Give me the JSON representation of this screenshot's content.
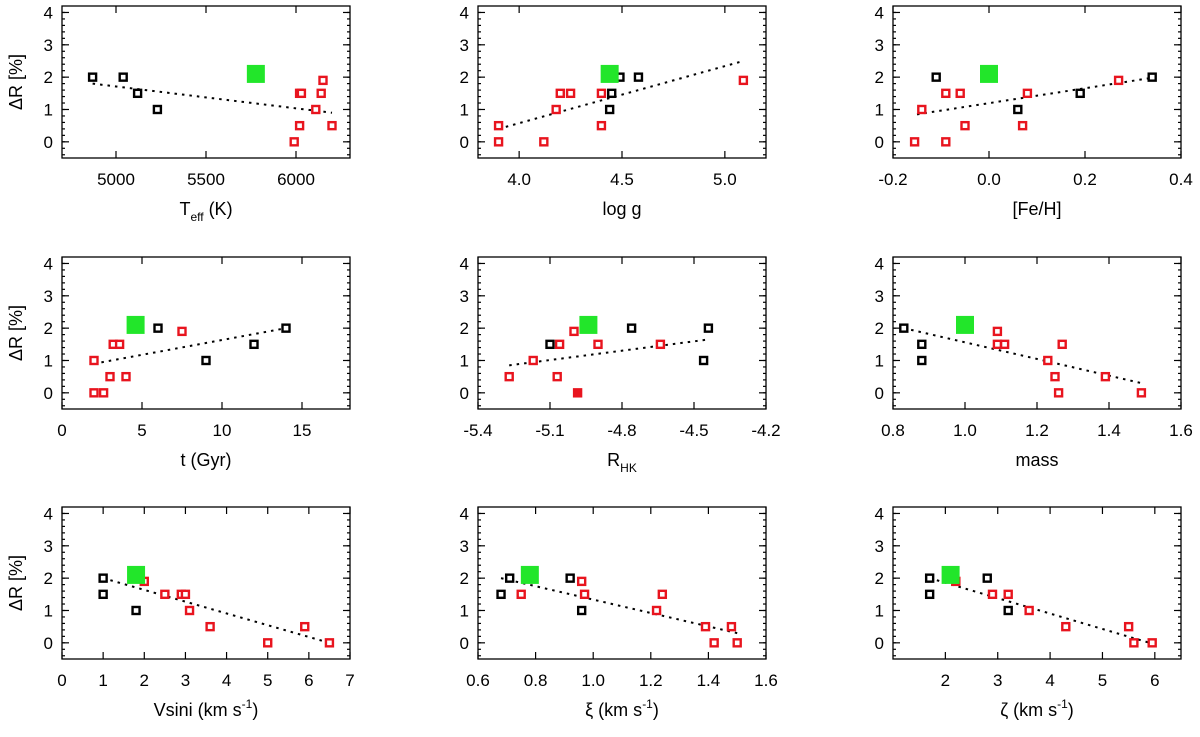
{
  "colors": {
    "black": "#000000",
    "red": "#e8141e",
    "green": "#22e62a"
  },
  "chart_data": [
    {
      "type": "scatter",
      "xlabel": "T",
      "xlabel_sub": "eff",
      "xlabel_suffix": " (K)",
      "ylabel": "ΔR [%]",
      "xlim": [
        4700,
        6300
      ],
      "ylim": [
        -0.5,
        4.2
      ],
      "xticks": [
        5000,
        5500,
        6000
      ],
      "xtick_labels": [
        "5000",
        "5500",
        "6000"
      ],
      "yticks": [
        0,
        1,
        2,
        3,
        4
      ],
      "ytick_labels": [
        "0",
        "1",
        "2",
        "3",
        "4"
      ],
      "series": [
        {
          "name": "black",
          "points": [
            [
              4870,
              2.0
            ],
            [
              5040,
              2.0
            ],
            [
              5120,
              1.5
            ],
            [
              5230,
              1.0
            ]
          ]
        },
        {
          "name": "red",
          "points": [
            [
              5990,
              0.0
            ],
            [
              6020,
              0.5
            ],
            [
              6020,
              1.5
            ],
            [
              6030,
              1.5
            ],
            [
              6110,
              1.0
            ],
            [
              6140,
              1.5
            ],
            [
              6150,
              1.9
            ],
            [
              6200,
              0.5
            ]
          ]
        },
        {
          "name": "green",
          "points": [
            [
              5777,
              2.1
            ]
          ]
        }
      ],
      "trend": [
        [
          4870,
          1.8
        ],
        [
          6200,
          0.9
        ]
      ]
    },
    {
      "type": "scatter",
      "xlabel": "log g",
      "ylabel": "",
      "xlim": [
        3.8,
        5.2
      ],
      "ylim": [
        -0.5,
        4.2
      ],
      "xticks": [
        4.0,
        4.5,
        5.0
      ],
      "xtick_labels": [
        "4.0",
        "4.5",
        "5.0"
      ],
      "yticks": [
        0,
        1,
        2,
        3,
        4
      ],
      "ytick_labels": [
        "0",
        "1",
        "2",
        "3",
        "4"
      ],
      "series": [
        {
          "name": "black",
          "points": [
            [
              4.44,
              1.0
            ],
            [
              4.45,
              1.5
            ],
            [
              4.49,
              2.0
            ],
            [
              4.58,
              2.0
            ]
          ]
        },
        {
          "name": "red",
          "points": [
            [
              3.9,
              0.5
            ],
            [
              3.9,
              0.0
            ],
            [
              4.12,
              0.0
            ],
            [
              4.18,
              1.0
            ],
            [
              4.2,
              1.5
            ],
            [
              4.25,
              1.5
            ],
            [
              4.4,
              0.5
            ],
            [
              4.4,
              1.5
            ],
            [
              5.09,
              1.9
            ]
          ]
        },
        {
          "name": "green",
          "points": [
            [
              4.44,
              2.1
            ]
          ]
        }
      ],
      "trend": [
        [
          3.9,
          0.4
        ],
        [
          5.09,
          2.5
        ]
      ]
    },
    {
      "type": "scatter",
      "xlabel": "[Fe/H]",
      "ylabel": "",
      "xlim": [
        -0.2,
        0.4
      ],
      "ylim": [
        -0.5,
        4.2
      ],
      "xticks": [
        -0.2,
        0.0,
        0.2,
        0.4
      ],
      "xtick_labels": [
        "-0.2",
        "0.0",
        "0.2",
        "0.4"
      ],
      "yticks": [
        0,
        1,
        2,
        3,
        4
      ],
      "ytick_labels": [
        "0",
        "1",
        "2",
        "3",
        "4"
      ],
      "series": [
        {
          "name": "black",
          "points": [
            [
              -0.11,
              2.0
            ],
            [
              0.06,
              1.0
            ],
            [
              0.19,
              1.5
            ],
            [
              0.34,
              2.0
            ]
          ]
        },
        {
          "name": "red",
          "points": [
            [
              -0.155,
              0.0
            ],
            [
              -0.14,
              1.0
            ],
            [
              -0.09,
              1.5
            ],
            [
              -0.09,
              0.0
            ],
            [
              -0.06,
              1.5
            ],
            [
              -0.05,
              0.5
            ],
            [
              0.07,
              0.5
            ],
            [
              0.08,
              1.5
            ],
            [
              0.27,
              1.9
            ]
          ]
        },
        {
          "name": "green",
          "points": [
            [
              0.0,
              2.1
            ]
          ]
        }
      ],
      "trend": [
        [
          -0.15,
          0.85
        ],
        [
          0.34,
          1.98
        ]
      ]
    },
    {
      "type": "scatter",
      "xlabel": "t (Gyr)",
      "ylabel": "ΔR [%]",
      "xlim": [
        0,
        18
      ],
      "ylim": [
        -0.5,
        4.2
      ],
      "xticks": [
        0,
        5,
        10,
        15
      ],
      "xtick_labels": [
        "0",
        "5",
        "10",
        "15"
      ],
      "yticks": [
        0,
        1,
        2,
        3,
        4
      ],
      "ytick_labels": [
        "0",
        "1",
        "2",
        "3",
        "4"
      ],
      "series": [
        {
          "name": "black",
          "points": [
            [
              6.0,
              2.0
            ],
            [
              9.0,
              1.0
            ],
            [
              12.0,
              1.5
            ],
            [
              14.0,
              2.0
            ]
          ]
        },
        {
          "name": "red",
          "points": [
            [
              2.0,
              0.0
            ],
            [
              2.0,
              1.0
            ],
            [
              2.6,
              0.0
            ],
            [
              3.0,
              0.5
            ],
            [
              3.2,
              1.5
            ],
            [
              3.6,
              1.5
            ],
            [
              4.0,
              0.5
            ],
            [
              7.5,
              1.9
            ]
          ]
        },
        {
          "name": "green",
          "points": [
            [
              4.6,
              2.1
            ]
          ]
        }
      ],
      "trend": [
        [
          2.0,
          0.9
        ],
        [
          14.0,
          2.0
        ]
      ]
    },
    {
      "type": "scatter",
      "xlabel": "R",
      "xlabel_sub": "HK",
      "xlabel_suffix": "",
      "ylabel": "",
      "xlim": [
        -5.4,
        -4.2
      ],
      "ylim": [
        -0.5,
        4.2
      ],
      "xticks": [
        -5.4,
        -5.1,
        -4.8,
        -4.5,
        -4.2
      ],
      "xtick_labels": [
        "-5.4",
        "-5.1",
        "-4.8",
        "-4.5",
        "-4.2"
      ],
      "yticks": [
        0,
        1,
        2,
        3,
        4
      ],
      "ytick_labels": [
        "0",
        "1",
        "2",
        "3",
        "4"
      ],
      "series": [
        {
          "name": "black",
          "points": [
            [
              -5.1,
              1.5
            ],
            [
              -4.76,
              2.0
            ],
            [
              -4.46,
              1.0
            ],
            [
              -4.44,
              2.0
            ]
          ]
        },
        {
          "name": "red",
          "points": [
            [
              -5.27,
              0.5
            ],
            [
              -5.17,
              1.0
            ],
            [
              -5.07,
              0.5
            ],
            [
              -5.06,
              1.5
            ],
            [
              -5.0,
              1.9
            ],
            [
              -4.9,
              1.5
            ],
            [
              -4.64,
              1.5
            ]
          ]
        },
        {
          "name": "red-filled",
          "points": [
            [
              -4.985,
              0.0
            ]
          ]
        },
        {
          "name": "green",
          "points": [
            [
              -4.94,
              2.1
            ]
          ]
        }
      ],
      "trend": [
        [
          -5.27,
          0.85
        ],
        [
          -4.44,
          1.65
        ]
      ]
    },
    {
      "type": "scatter",
      "xlabel": "mass",
      "ylabel": "",
      "xlim": [
        0.8,
        1.6
      ],
      "ylim": [
        -0.5,
        4.2
      ],
      "xticks": [
        0.8,
        1.0,
        1.2,
        1.4,
        1.6
      ],
      "xtick_labels": [
        "0.8",
        "1.0",
        "1.2",
        "1.4",
        "1.6"
      ],
      "yticks": [
        0,
        1,
        2,
        3,
        4
      ],
      "ytick_labels": [
        "0",
        "1",
        "2",
        "3",
        "4"
      ],
      "series": [
        {
          "name": "black",
          "points": [
            [
              0.83,
              2.0
            ],
            [
              0.88,
              1.5
            ],
            [
              0.88,
              1.0
            ]
          ]
        },
        {
          "name": "red",
          "points": [
            [
              1.09,
              1.9
            ],
            [
              1.09,
              1.5
            ],
            [
              1.11,
              1.5
            ],
            [
              1.23,
              1.0
            ],
            [
              1.25,
              0.5
            ],
            [
              1.26,
              0.0
            ],
            [
              1.27,
              1.5
            ],
            [
              1.39,
              0.5
            ],
            [
              1.49,
              0.0
            ]
          ]
        },
        {
          "name": "green",
          "points": [
            [
              1.0,
              2.1
            ]
          ]
        }
      ],
      "trend": [
        [
          0.83,
          2.0
        ],
        [
          1.49,
          0.3
        ]
      ]
    },
    {
      "type": "scatter",
      "xlabel": "Vsini (km s",
      "xlabel_sup": "-1",
      "xlabel_suffix": ")",
      "ylabel": "ΔR [%]",
      "xlim": [
        0,
        7
      ],
      "ylim": [
        -0.5,
        4.2
      ],
      "xticks": [
        0,
        1,
        2,
        3,
        4,
        5,
        6,
        7
      ],
      "xtick_labels": [
        "0",
        "1",
        "2",
        "3",
        "4",
        "5",
        "6",
        "7"
      ],
      "yticks": [
        0,
        1,
        2,
        3,
        4
      ],
      "ytick_labels": [
        "0",
        "1",
        "2",
        "3",
        "4"
      ],
      "series": [
        {
          "name": "black",
          "points": [
            [
              1.0,
              2.0
            ],
            [
              1.0,
              1.5
            ],
            [
              1.8,
              1.0
            ]
          ]
        },
        {
          "name": "red",
          "points": [
            [
              2.0,
              1.9
            ],
            [
              2.5,
              1.5
            ],
            [
              2.9,
              1.5
            ],
            [
              3.0,
              1.5
            ],
            [
              3.1,
              1.0
            ],
            [
              3.6,
              0.5
            ],
            [
              5.0,
              0.0
            ],
            [
              5.9,
              0.5
            ],
            [
              6.5,
              0.0
            ]
          ]
        },
        {
          "name": "green",
          "points": [
            [
              1.8,
              2.1
            ]
          ]
        }
      ],
      "trend": [
        [
          1.0,
          2.0
        ],
        [
          6.5,
          0.0
        ]
      ]
    },
    {
      "type": "scatter",
      "xlabel": "ξ  (km s",
      "xlabel_sup": "-1",
      "xlabel_suffix": ")",
      "ylabel": "",
      "xlim": [
        0.6,
        1.6
      ],
      "ylim": [
        -0.5,
        4.2
      ],
      "xticks": [
        0.6,
        0.8,
        1.0,
        1.2,
        1.4,
        1.6
      ],
      "xtick_labels": [
        "0.6",
        "0.8",
        "1.0",
        "1.2",
        "1.4",
        "1.6"
      ],
      "yticks": [
        0,
        1,
        2,
        3,
        4
      ],
      "ytick_labels": [
        "0",
        "1",
        "2",
        "3",
        "4"
      ],
      "series": [
        {
          "name": "black",
          "points": [
            [
              0.68,
              1.5
            ],
            [
              0.71,
              2.0
            ],
            [
              0.92,
              2.0
            ],
            [
              0.96,
              1.0
            ]
          ]
        },
        {
          "name": "red",
          "points": [
            [
              0.75,
              1.5
            ],
            [
              0.96,
              1.9
            ],
            [
              0.97,
              1.5
            ],
            [
              1.22,
              1.0
            ],
            [
              1.24,
              1.5
            ],
            [
              1.39,
              0.5
            ],
            [
              1.42,
              0.0
            ],
            [
              1.48,
              0.5
            ],
            [
              1.5,
              0.0
            ]
          ]
        },
        {
          "name": "green",
          "points": [
            [
              0.78,
              2.1
            ]
          ]
        }
      ],
      "trend": [
        [
          0.68,
          2.0
        ],
        [
          1.5,
          0.3
        ]
      ]
    },
    {
      "type": "scatter",
      "xlabel": "ζ  (km s",
      "xlabel_sup": "-1",
      "xlabel_suffix": ")",
      "ylabel": "",
      "xlim": [
        1,
        6.5
      ],
      "ylim": [
        -0.5,
        4.2
      ],
      "xticks": [
        2,
        3,
        4,
        5,
        6
      ],
      "xtick_labels": [
        "2",
        "3",
        "4",
        "5",
        "6"
      ],
      "yticks": [
        0,
        1,
        2,
        3,
        4
      ],
      "ytick_labels": [
        "0",
        "1",
        "2",
        "3",
        "4"
      ],
      "series": [
        {
          "name": "black",
          "points": [
            [
              1.7,
              2.0
            ],
            [
              1.7,
              1.5
            ],
            [
              2.8,
              2.0
            ],
            [
              3.2,
              1.0
            ]
          ]
        },
        {
          "name": "red",
          "points": [
            [
              2.2,
              1.9
            ],
            [
              2.9,
              1.5
            ],
            [
              3.2,
              1.5
            ],
            [
              3.6,
              1.0
            ],
            [
              4.3,
              0.5
            ],
            [
              5.5,
              0.5
            ],
            [
              5.6,
              0.0
            ],
            [
              5.95,
              0.0
            ]
          ]
        },
        {
          "name": "green",
          "points": [
            [
              2.1,
              2.1
            ]
          ]
        }
      ],
      "trend": [
        [
          1.7,
          2.0
        ],
        [
          5.9,
          0.0
        ]
      ]
    }
  ]
}
